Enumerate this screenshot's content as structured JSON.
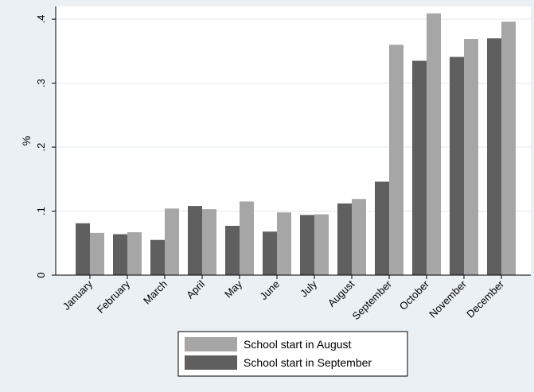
{
  "chart_data": {
    "type": "bar",
    "ylabel": "%",
    "xlabel": "",
    "ylim": [
      0,
      0.42
    ],
    "yticks": [
      0,
      0.1,
      0.2,
      0.3,
      0.4
    ],
    "ytick_labels": [
      "0",
      ".1",
      ".2",
      ".3",
      ".4"
    ],
    "grid": true,
    "legend_position": "bottom",
    "categories": [
      "January",
      "February",
      "March",
      "April",
      "May",
      "June",
      "July",
      "August",
      "September",
      "October",
      "November",
      "December"
    ],
    "series": [
      {
        "name": "School start in September",
        "color": "#5f5f5f",
        "values": [
          0.081,
          0.064,
          0.055,
          0.108,
          0.077,
          0.068,
          0.094,
          0.112,
          0.146,
          0.335,
          0.341,
          0.37
        ]
      },
      {
        "name": "School start in August",
        "color": "#a6a6a6",
        "values": [
          0.066,
          0.067,
          0.104,
          0.103,
          0.115,
          0.098,
          0.095,
          0.119,
          0.36,
          0.409,
          0.369,
          0.396
        ]
      }
    ],
    "legend_order": [
      "School start in August",
      "School start in September"
    ],
    "colors": {
      "background": "#eaf0f4",
      "plot_background": "#ffffff",
      "grid": "#e6ecef"
    }
  }
}
